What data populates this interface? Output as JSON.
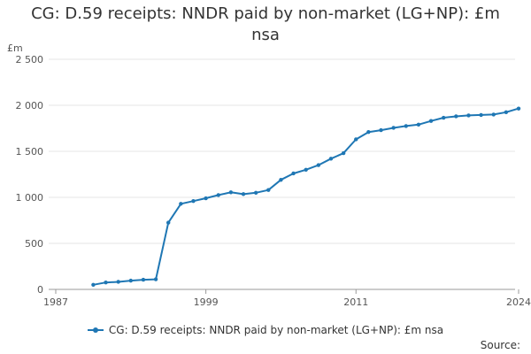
{
  "title": "CG: D.59 receipts: NNDR paid by non-market (LG+NP): £m nsa",
  "source_label": "Source:",
  "colors": {
    "series": "#1f77b4",
    "grid": "#e6e6e6",
    "axis": "#999999"
  },
  "chart_data": {
    "type": "line",
    "ylabel": "£m",
    "xlabel": "",
    "ylim": [
      0,
      2500
    ],
    "xlim": [
      1987,
      2024
    ],
    "y_ticks": [
      {
        "value": 0,
        "label": "0"
      },
      {
        "value": 500,
        "label": "500"
      },
      {
        "value": 1000,
        "label": "1 000"
      },
      {
        "value": 1500,
        "label": "1 500"
      },
      {
        "value": 2000,
        "label": "2 000"
      },
      {
        "value": 2500,
        "label": "2 500"
      }
    ],
    "x_ticks": [
      {
        "value": 1987,
        "label": "1987"
      },
      {
        "value": 1999,
        "label": "1999"
      },
      {
        "value": 2011,
        "label": "2011"
      },
      {
        "value": 2024,
        "label": "2024"
      }
    ],
    "grid": true,
    "legend_position": "bottom",
    "series": [
      {
        "name": "CG: D.59 receipts: NNDR paid by non-market (LG+NP): £m nsa",
        "x": [
          1990,
          1991,
          1992,
          1993,
          1994,
          1995,
          1996,
          1997,
          1998,
          1999,
          2000,
          2001,
          2002,
          2003,
          2004,
          2005,
          2006,
          2007,
          2008,
          2009,
          2010,
          2011,
          2012,
          2013,
          2014,
          2015,
          2016,
          2017,
          2018,
          2019,
          2020,
          2021,
          2022,
          2023,
          2024
        ],
        "y": [
          50,
          75,
          82,
          95,
          105,
          110,
          725,
          930,
          960,
          990,
          1025,
          1055,
          1035,
          1050,
          1080,
          1190,
          1260,
          1300,
          1350,
          1420,
          1480,
          1630,
          1710,
          1730,
          1755,
          1775,
          1790,
          1830,
          1865,
          1880,
          1890,
          1895,
          1900,
          1925,
          1965
        ]
      }
    ]
  }
}
